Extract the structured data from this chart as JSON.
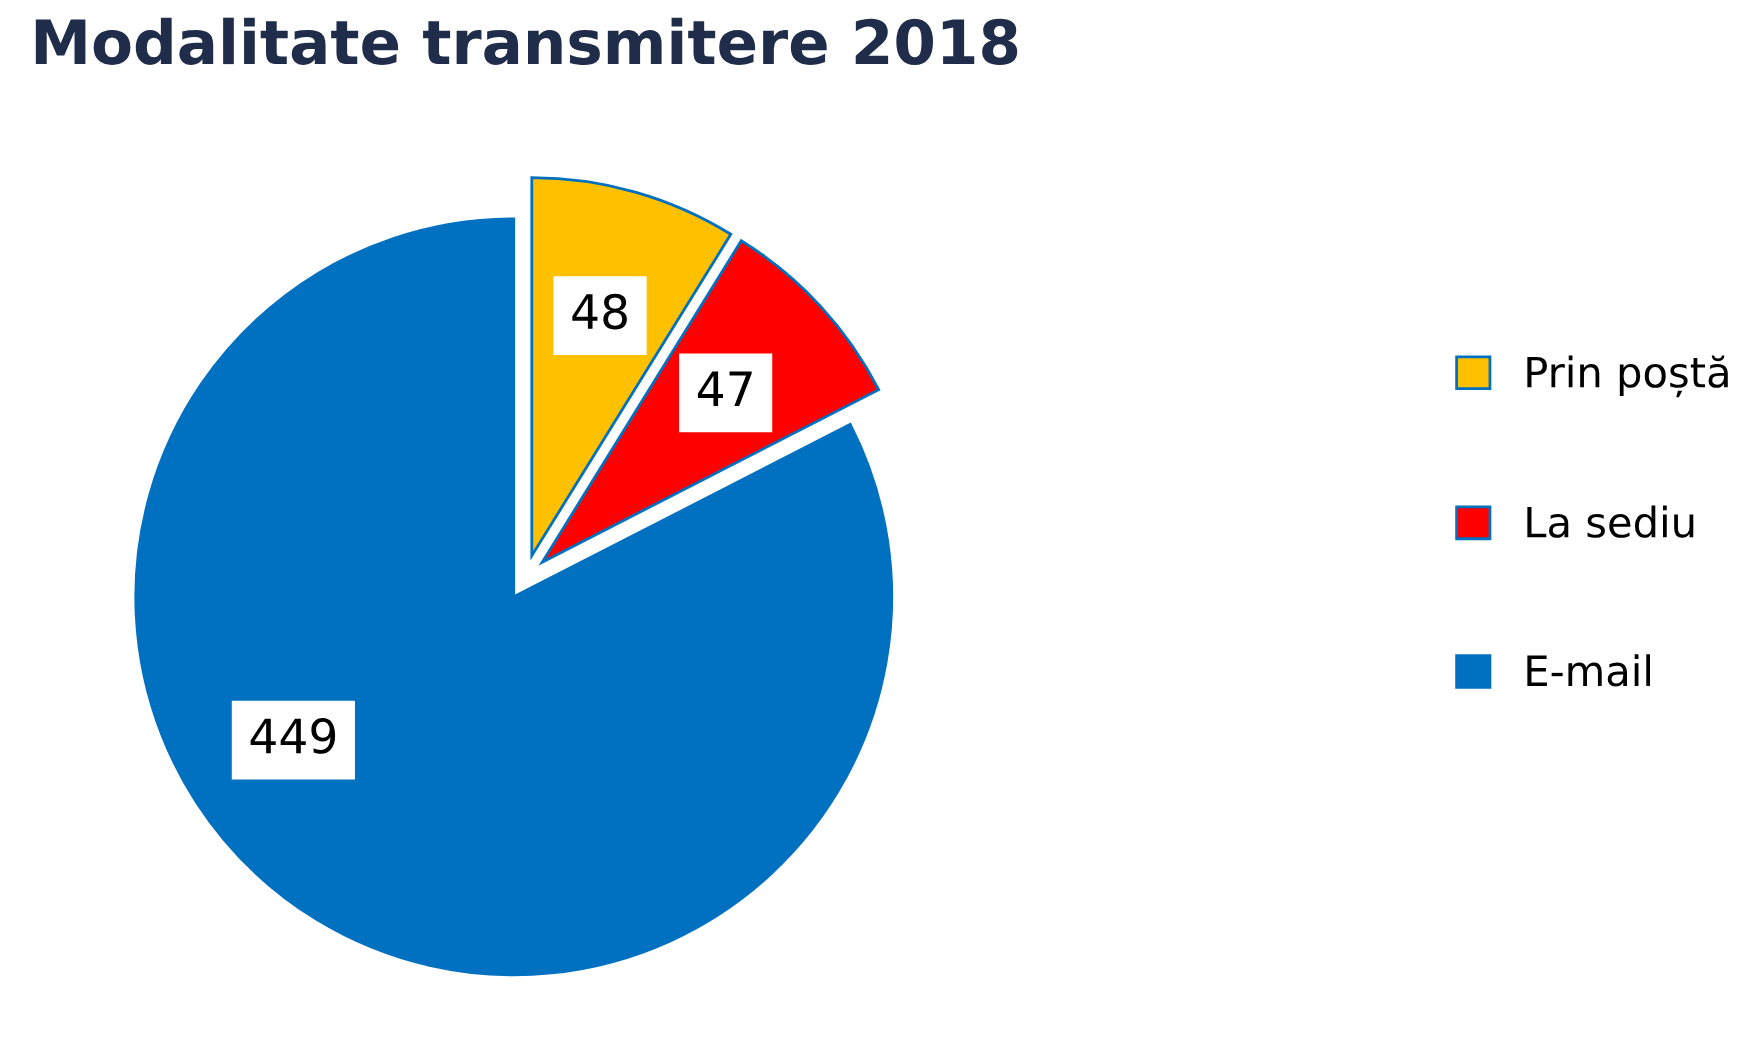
{
  "chart_data": {
    "type": "pie",
    "title": "Modalitate transmitere 2018",
    "categories": [
      "Prin poștă",
      "La sediu",
      "E-mail"
    ],
    "values": [
      48,
      47,
      449
    ],
    "colors": [
      "#ffc000",
      "#ff0000",
      "#0070c0"
    ],
    "data_labels": true,
    "legend": "right"
  }
}
